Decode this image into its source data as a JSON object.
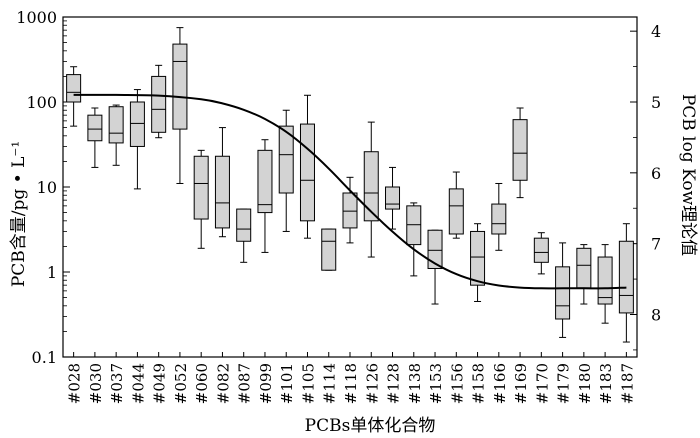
{
  "chart_data": {
    "type": "boxplot",
    "ylabel": "PCB含量/pg • L⁻¹",
    "y2label": "PCB log Kow理论值",
    "xlabel": "PCBs单体化合物",
    "y_scale": "log",
    "ylim": [
      0.1,
      1000
    ],
    "y_ticks": [
      "0.1",
      "1",
      "10",
      "100",
      "1000"
    ],
    "y2_scale": "linear",
    "y2_range": [
      8.6,
      3.8
    ],
    "y2_ticks": [
      "4",
      "5",
      "6",
      "7",
      "8"
    ],
    "categories": [
      "#028",
      "#030",
      "#037",
      "#044",
      "#049",
      "#052",
      "#060",
      "#082",
      "#087",
      "#099",
      "#101",
      "#105",
      "#114",
      "#118",
      "#126",
      "#128",
      "#138",
      "#153",
      "#156",
      "#158",
      "#166",
      "#169",
      "#170",
      "#179",
      "#180",
      "#183",
      "#187"
    ],
    "boxes": [
      {
        "min": 52,
        "q1": 100,
        "median": 130,
        "q3": 210,
        "max": 260
      },
      {
        "min": 17,
        "q1": 35,
        "median": 48,
        "q3": 70,
        "max": 85
      },
      {
        "min": 18,
        "q1": 33,
        "median": 43,
        "q3": 88,
        "max": 92
      },
      {
        "min": 9.5,
        "q1": 30,
        "median": 56,
        "q3": 100,
        "max": 140
      },
      {
        "min": 38,
        "q1": 44,
        "median": 82,
        "q3": 200,
        "max": 270
      },
      {
        "min": 11,
        "q1": 48,
        "median": 300,
        "q3": 480,
        "max": 750
      },
      {
        "min": 1.9,
        "q1": 4.2,
        "median": 11,
        "q3": 23,
        "max": 27
      },
      {
        "min": 2.6,
        "q1": 3.3,
        "median": 6.5,
        "q3": 23,
        "max": 50
      },
      {
        "min": 1.3,
        "q1": 2.3,
        "median": 3.2,
        "q3": 5.5,
        "max": 5.5
      },
      {
        "min": 1.7,
        "q1": 5,
        "median": 6.2,
        "q3": 27,
        "max": 36
      },
      {
        "min": 3,
        "q1": 8.5,
        "median": 24,
        "q3": 52,
        "max": 80
      },
      {
        "min": 2.5,
        "q1": 4,
        "median": 12,
        "q3": 55,
        "max": 120
      },
      {
        "min": 1.05,
        "q1": 1.05,
        "median": 2.3,
        "q3": 3.2,
        "max": 3.2
      },
      {
        "min": 2.2,
        "q1": 3.3,
        "median": 5.2,
        "q3": 8.5,
        "max": 13
      },
      {
        "min": 1.5,
        "q1": 4,
        "median": 8.5,
        "q3": 26,
        "max": 58
      },
      {
        "min": 3.2,
        "q1": 5.5,
        "median": 6.3,
        "q3": 10,
        "max": 17
      },
      {
        "min": 0.9,
        "q1": 2.1,
        "median": 3.6,
        "q3": 6,
        "max": 6.5
      },
      {
        "min": 0.42,
        "q1": 1.1,
        "median": 1.8,
        "q3": 3.1,
        "max": 3.1
      },
      {
        "min": 2.5,
        "q1": 2.8,
        "median": 6,
        "q3": 9.5,
        "max": 15
      },
      {
        "min": 0.45,
        "q1": 0.7,
        "median": 1.5,
        "q3": 3,
        "max": 3.7
      },
      {
        "min": 1.8,
        "q1": 2.8,
        "median": 3.7,
        "q3": 6.3,
        "max": 11
      },
      {
        "min": 7.5,
        "q1": 12,
        "median": 25,
        "q3": 62,
        "max": 85
      },
      {
        "min": 0.95,
        "q1": 1.3,
        "median": 1.7,
        "q3": 2.5,
        "max": 2.9
      },
      {
        "min": 0.17,
        "q1": 0.28,
        "median": 0.4,
        "q3": 1.15,
        "max": 2.2
      },
      {
        "min": 0.42,
        "q1": 0.65,
        "median": 1.2,
        "q3": 1.9,
        "max": 2.1
      },
      {
        "min": 0.25,
        "q1": 0.42,
        "median": 0.5,
        "q3": 1.5,
        "max": 2.1
      },
      {
        "min": 0.15,
        "q1": 0.33,
        "median": 0.53,
        "q3": 2.3,
        "max": 3.7
      }
    ],
    "curve": {
      "axis": "y2",
      "description": "sigmoid log Kow curve",
      "x_index": [
        0,
        2,
        4,
        6,
        7,
        8,
        9,
        10,
        11,
        12,
        13,
        14,
        15,
        16,
        17,
        18,
        19,
        20,
        21,
        22,
        23,
        24,
        25,
        26
      ],
      "values": [
        4.9,
        4.9,
        4.91,
        4.96,
        5.02,
        5.11,
        5.24,
        5.42,
        5.66,
        5.94,
        6.25,
        6.55,
        6.83,
        7.08,
        7.28,
        7.43,
        7.53,
        7.59,
        7.62,
        7.63,
        7.63,
        7.63,
        7.63,
        7.62
      ]
    },
    "colors": {
      "box_fill": "#d3d3d3",
      "line": "#000000"
    }
  }
}
